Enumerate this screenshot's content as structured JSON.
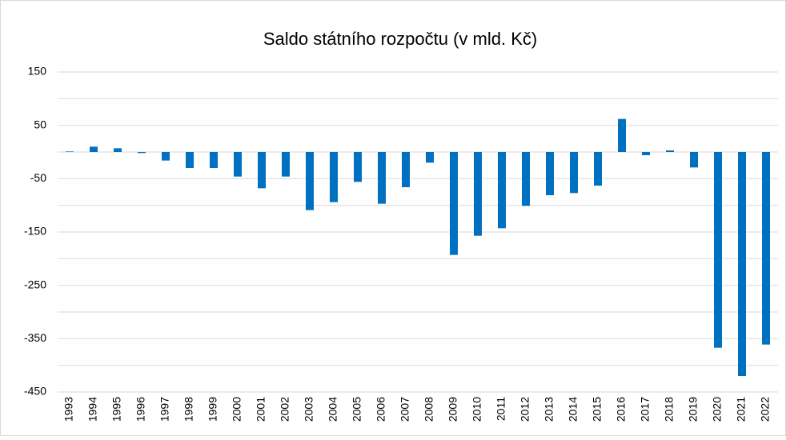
{
  "chart_data": {
    "type": "bar",
    "title": "Saldo státního rozpočtu (v mld. Kč)",
    "categories": [
      "1993",
      "1994",
      "1995",
      "1996",
      "1997",
      "1998",
      "1999",
      "2000",
      "2001",
      "2002",
      "2003",
      "2004",
      "2005",
      "2006",
      "2007",
      "2008",
      "2009",
      "2010",
      "2011",
      "2012",
      "2013",
      "2014",
      "2015",
      "2016",
      "2017",
      "2018",
      "2019",
      "2020",
      "2021",
      "2022"
    ],
    "values": [
      1,
      10,
      7,
      -2,
      -16,
      -30,
      -30,
      -46,
      -68,
      -46,
      -109,
      -94,
      -56,
      -97,
      -66,
      -20,
      -193,
      -157,
      -143,
      -101,
      -81,
      -77,
      -63,
      62,
      -6,
      3,
      -29,
      -367,
      -420,
      -361
    ],
    "color": "#0070c0",
    "ylim": [
      -450,
      150
    ],
    "yticks": [
      150,
      50,
      -50,
      -150,
      -250,
      -350,
      -450
    ],
    "minor_yticks": [
      100,
      0,
      -100,
      -200,
      -300,
      -400
    ],
    "grid": true
  }
}
